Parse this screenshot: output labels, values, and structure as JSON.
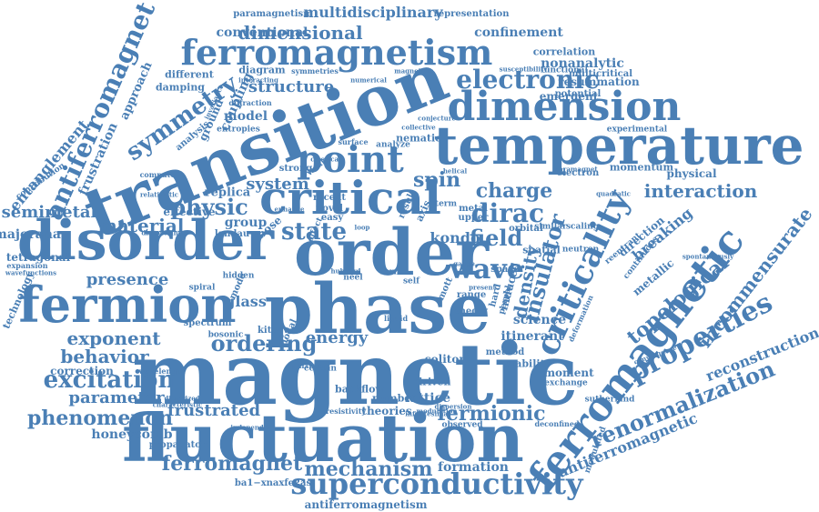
{
  "color": "#4a7fb5",
  "words": [
    "magnetic",
    "transition",
    "fluctuation",
    "phase",
    "temperature",
    "disorder",
    "order",
    "fermion",
    "critical",
    "ferromagnetic",
    "point",
    "dimension",
    "ferromagnetism",
    "criticality",
    "electronic",
    "wave",
    "superconductivity",
    "antiferromagnet",
    "properties",
    "symmetry",
    "state",
    "renormalization",
    "excitation",
    "topological",
    "insulator",
    "dirac",
    "charge",
    "phenomenon",
    "ferromagnet",
    "mechanism",
    "incommensurate",
    "interaction",
    "behavior",
    "field",
    "density",
    "spin",
    "physic",
    "ordering",
    "exponent",
    "material",
    "presence",
    "frustrated",
    "dimensional",
    "structure",
    "fermionic",
    "parameter",
    "system",
    "semimetal",
    "multidisciplinary",
    "entanglement",
    "kondo",
    "lattice",
    "energy",
    "frustration",
    "antiferromagnetic",
    "reconstruction",
    "formation",
    "honeycomb",
    "glass",
    "breaking",
    "correction",
    "majorana",
    "tetragonal",
    "confinement",
    "conventional",
    "nonanalytic",
    "science",
    "itinerant",
    "metallic",
    "direction",
    "model",
    "replica",
    "group",
    "effective",
    "approach",
    "coupling",
    "theories",
    "soliton",
    "backflow",
    "antiferromagnetism",
    "ba1−xnaxfe2as",
    "modulated",
    "moment",
    "emergent",
    "potential",
    "resummation",
    "spectrum",
    "propagator",
    "technology",
    "expansion",
    "paramagnetism",
    "representation",
    "diagram",
    "damping",
    "different",
    "correlation",
    "multicritical",
    "functional",
    "experimental",
    "physical",
    "momentum",
    "electron",
    "ground",
    "contribution",
    "number",
    "observed",
    "resistivity",
    "sutherland",
    "exchange",
    "stability",
    "method",
    "analysis",
    "entropies",
    "diffraction",
    "interacting",
    "symmetries",
    "nematic",
    "collective",
    "compute",
    "bosonic",
    "wavelength",
    "characteristic",
    "independent",
    "driven",
    "certain",
    "kitaev",
    "nodal",
    "hidden",
    "landau",
    "bose",
    "enhance",
    "novel",
    "recent",
    "easy",
    "term",
    "metal",
    "upper",
    "orbital",
    "similar",
    "range",
    "present",
    "theory",
    "space",
    "hard",
    "perpal",
    "induced",
    "mott",
    "néel",
    "axis",
    "result",
    "helical",
    "scaling",
    "spatial",
    "neutron",
    "deformation",
    "reentrant",
    "continuous",
    "spontaneously",
    "convergence",
    "deconfined",
    "infinitesimal",
    "dispersion",
    "modulation",
    "strong",
    "weak",
    "classical",
    "surface",
    "analyze",
    "quadratic",
    "paramagnet",
    "conjecture",
    "gauge",
    "numerical",
    "magnetism",
    "susceptibility",
    "invariance",
    "wavefunctions",
    "dimerized",
    "discovering",
    "relativistic",
    "effect",
    "mode",
    "spiral",
    "liquid",
    "particle",
    "self",
    "form",
    "hubbard",
    "loop"
  ]
}
